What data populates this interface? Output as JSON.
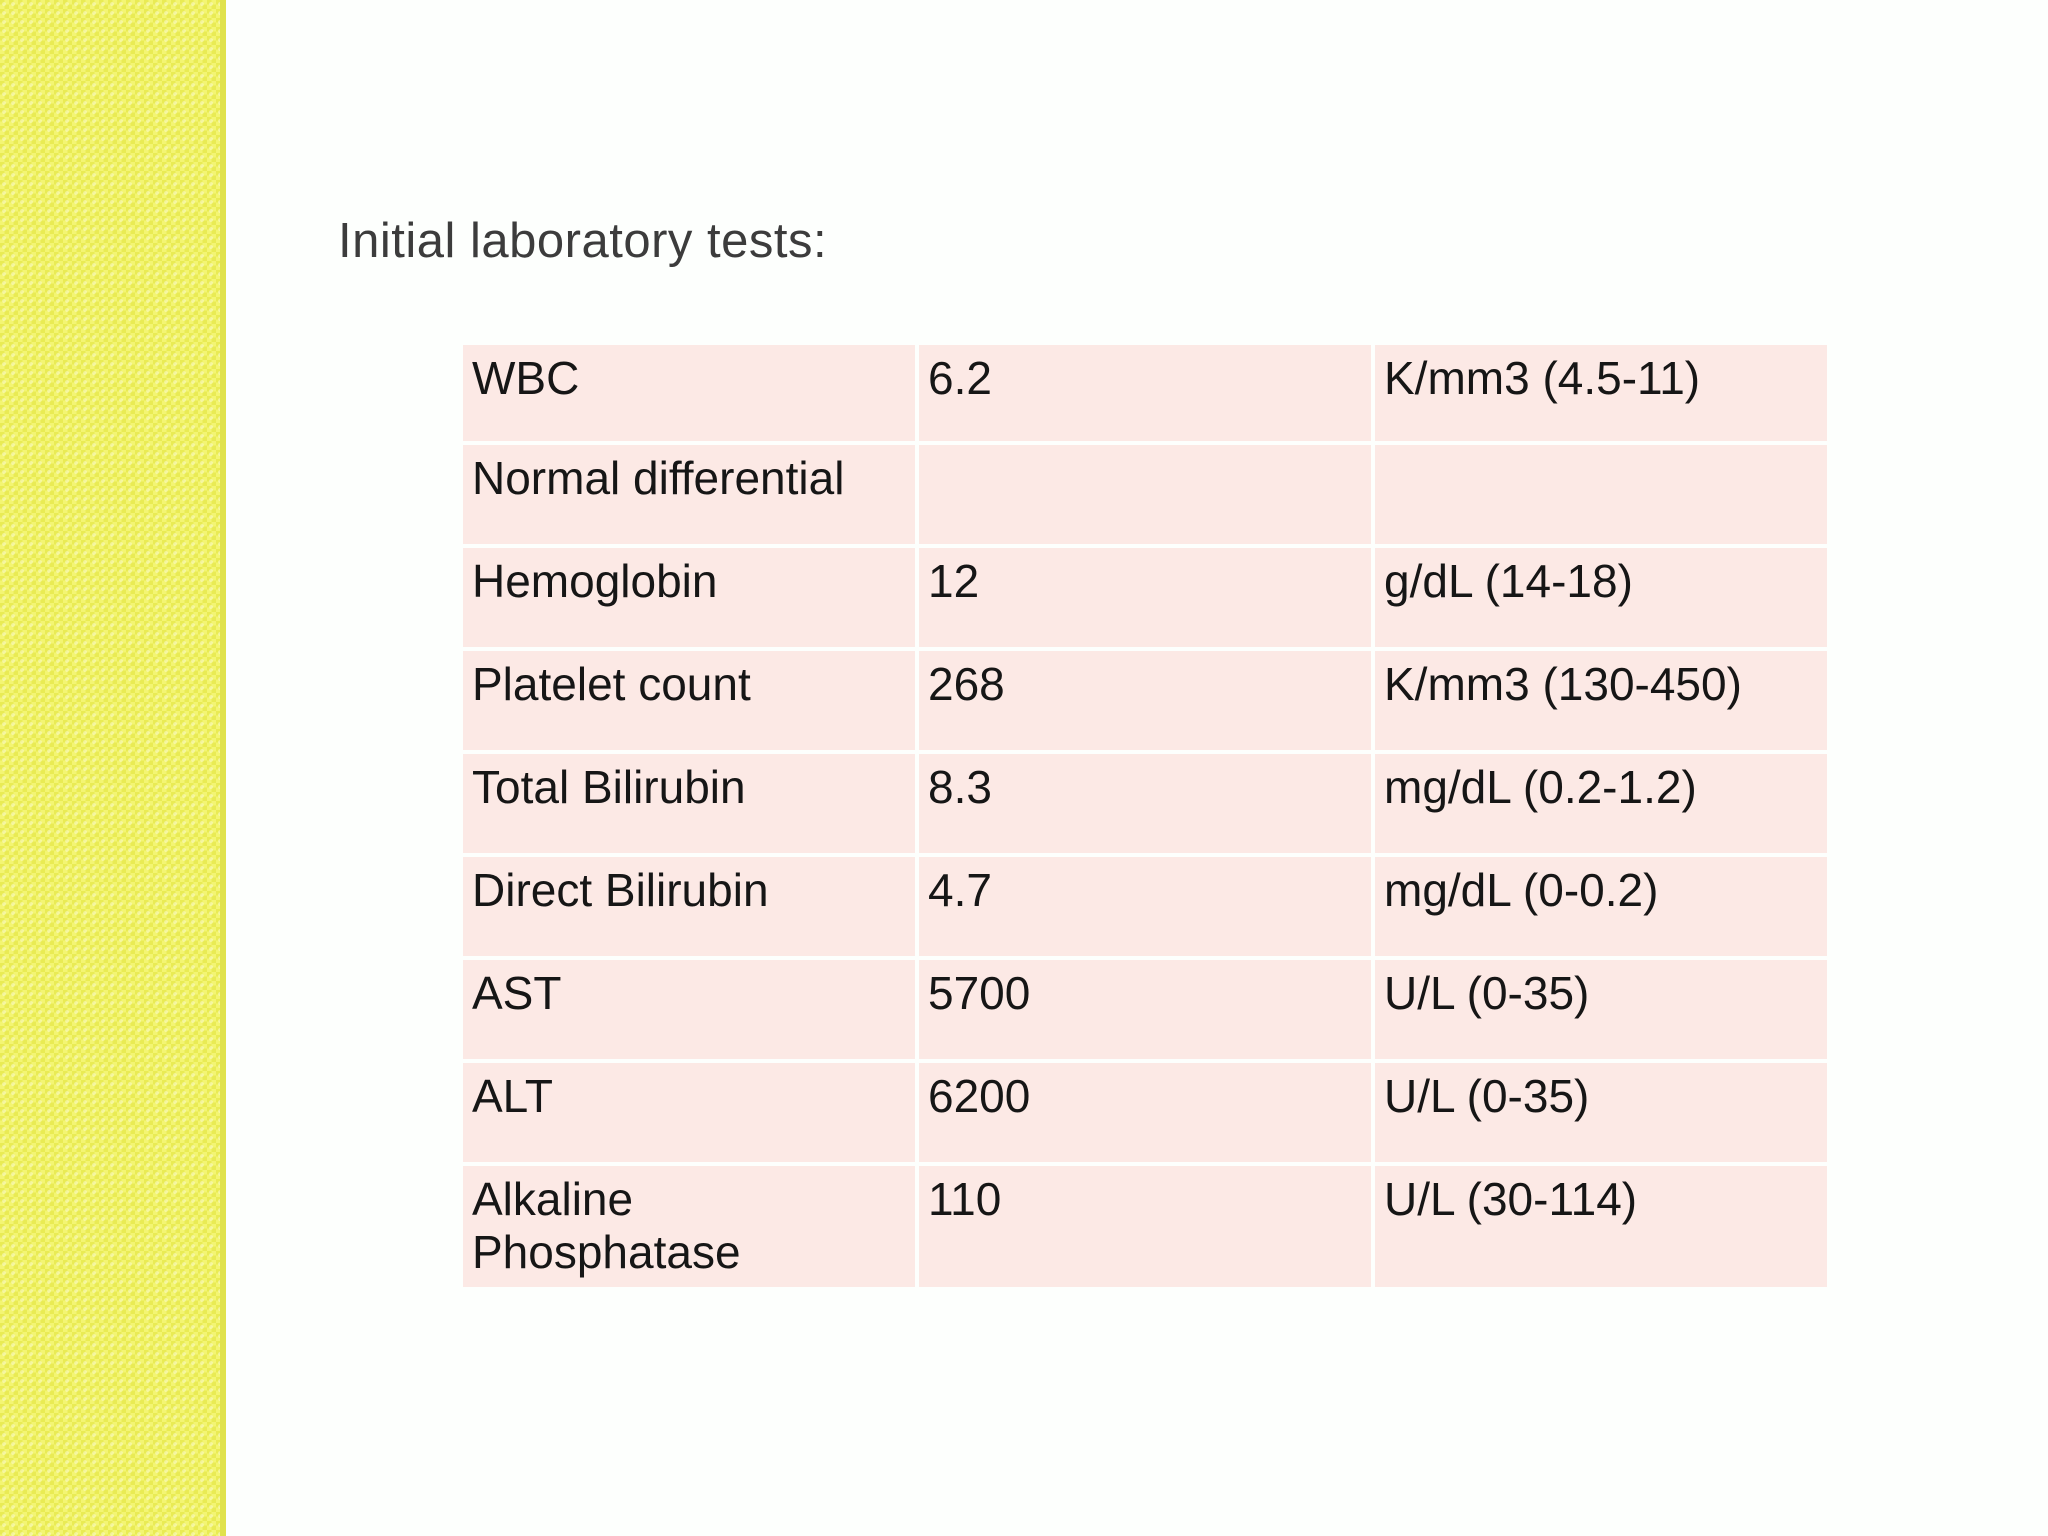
{
  "slide": {
    "title": "Initial laboratory tests:"
  },
  "table": {
    "rows": [
      {
        "test": "WBC",
        "value": "6.2",
        "units": "K/mm3 (4.5-11)"
      },
      {
        "test": "Normal differential",
        "value": "",
        "units": ""
      },
      {
        "test": "Hemoglobin",
        "value": "12",
        "units": "g/dL (14-18)"
      },
      {
        "test": "Platelet count",
        "value": "268",
        "units": "K/mm3 (130-450)"
      },
      {
        "test": "Total Bilirubin",
        "value": "8.3",
        "units": "mg/dL (0.2-1.2)"
      },
      {
        "test": "Direct Bilirubin",
        "value": "4.7",
        "units": "mg/dL (0-0.2)"
      },
      {
        "test": "AST",
        "value": "5700",
        "units": "U/L (0-35)"
      },
      {
        "test": "ALT",
        "value": "6200",
        "units": "U/L (0-35)"
      },
      {
        "test": "Alkaline Phosphatase",
        "value": "110",
        "units": "U/L (30-114)"
      }
    ]
  },
  "colors": {
    "sidebar_yellow": "#eef060",
    "sidebar_edge": "#e0e24c",
    "table_cell_pink": "#fce9e5",
    "title_text": "#3c3c3c",
    "table_text": "#161616",
    "background": "#fdfffd"
  }
}
